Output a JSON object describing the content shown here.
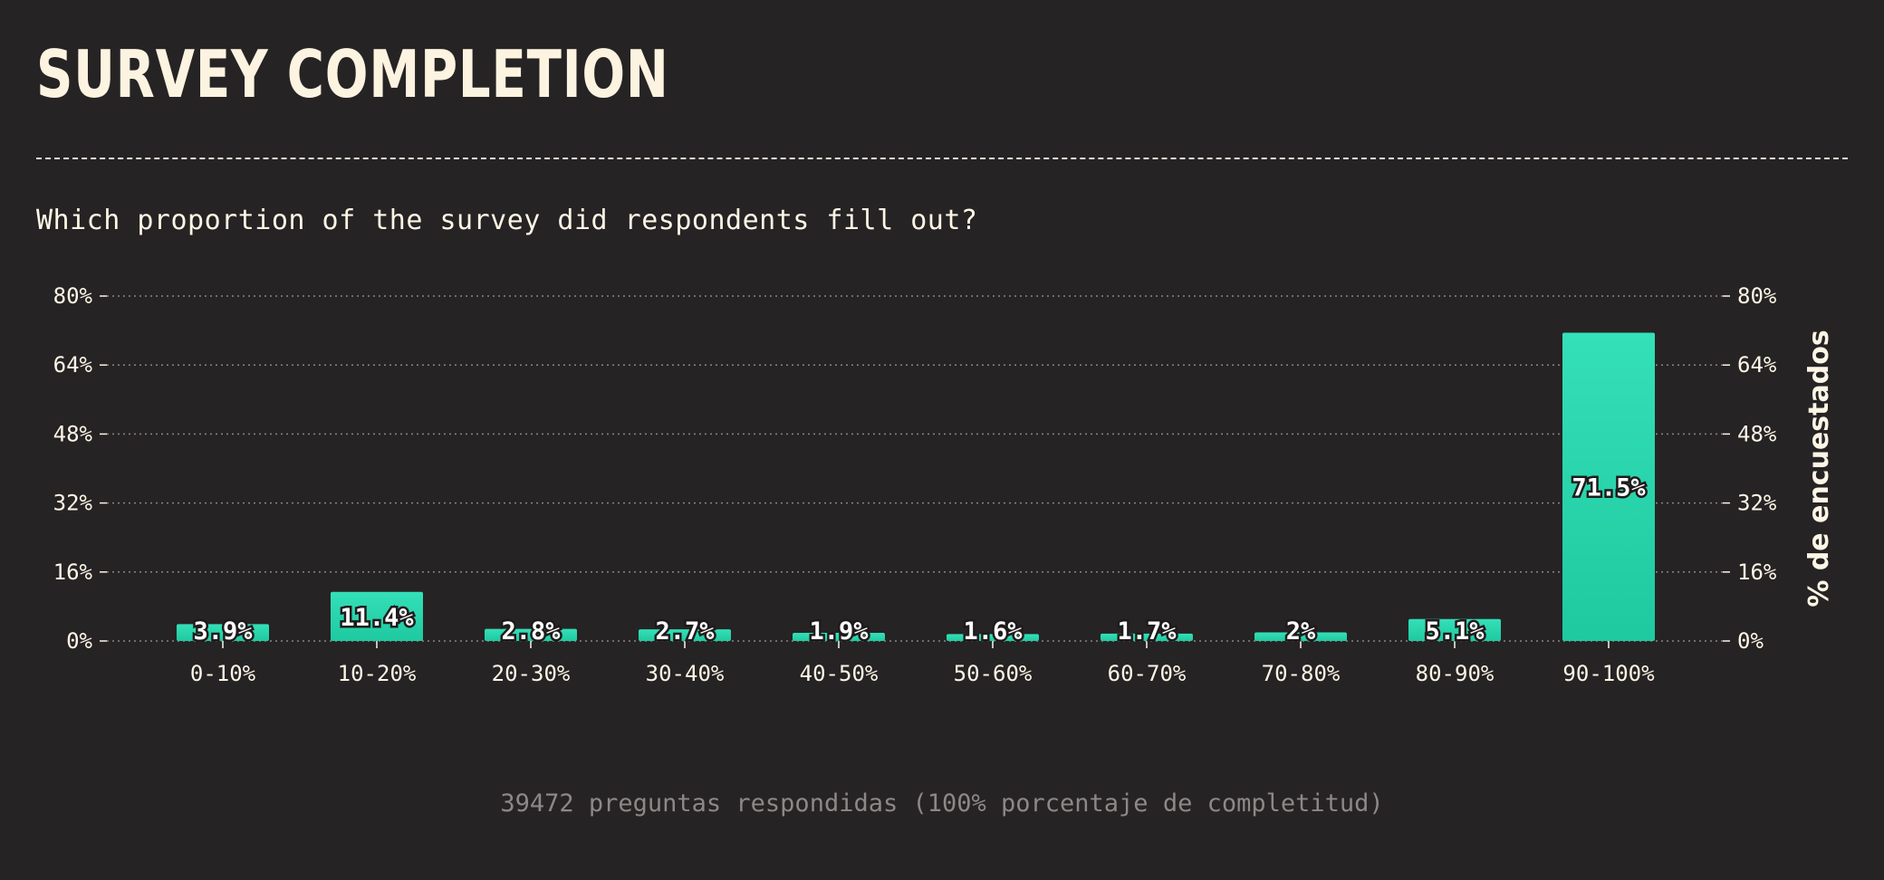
{
  "header": {
    "title": "SURVEY COMPLETION",
    "subtitle": "Which proportion of the survey did respondents fill out?"
  },
  "footer": {
    "note": "39472 preguntas respondidas (100% porcentaje de completitud)"
  },
  "colors": {
    "background": "#262324",
    "bar_top": "#34e0b8",
    "bar_bottom": "#1fc9a0",
    "text": "#fdf6e6",
    "grid": "#8a8584"
  },
  "chart_data": {
    "type": "bar",
    "categories": [
      "0-10%",
      "10-20%",
      "20-30%",
      "30-40%",
      "40-50%",
      "50-60%",
      "60-70%",
      "70-80%",
      "80-90%",
      "90-100%"
    ],
    "values": [
      3.9,
      11.4,
      2.8,
      2.7,
      1.9,
      1.6,
      1.7,
      2,
      5.1,
      71.5
    ],
    "value_labels": [
      "3.9%",
      "11.4%",
      "2.8%",
      "2.7%",
      "1.9%",
      "1.6%",
      "1.7%",
      "2%",
      "5.1%",
      "71.5%"
    ],
    "title": "SURVEY COMPLETION",
    "subtitle": "Which proportion of the survey did respondents fill out?",
    "xlabel": "",
    "ylabel": "% de encuestados",
    "ylim": [
      0,
      80
    ],
    "yticks": [
      0,
      16,
      32,
      48,
      64,
      80
    ],
    "ytick_labels": [
      "0%",
      "16%",
      "32%",
      "48%",
      "64%",
      "80%"
    ],
    "grid": true,
    "grid_style": "dotted",
    "dual_y_axis": true
  }
}
